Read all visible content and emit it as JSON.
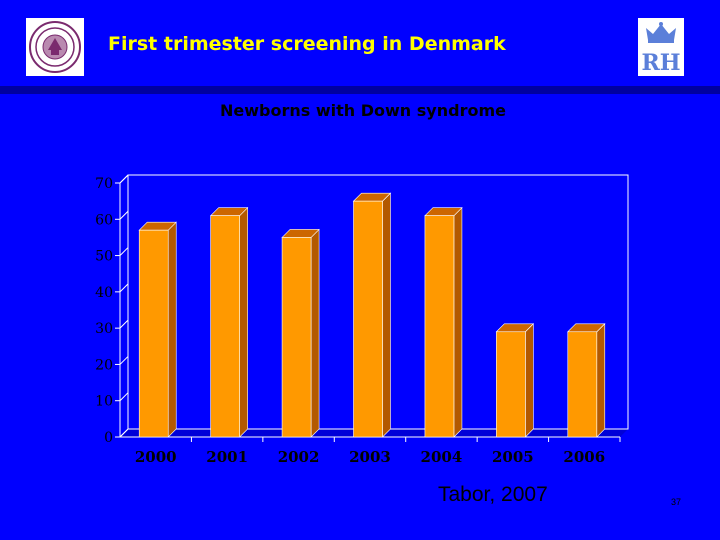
{
  "slide": {
    "title": "First trimester screening in Denmark",
    "credit": "Tabor, 2007",
    "slide_number": "37",
    "background_color": "#0000ff",
    "title_color": "#ffff00",
    "logo_left": "university-seal-logo",
    "logo_right": "crown-rh-logo"
  },
  "chart_data": {
    "type": "bar",
    "title": "Newborns with Down syndrome",
    "xlabel": "",
    "ylabel": "",
    "categories": [
      "2000",
      "2001",
      "2002",
      "2003",
      "2004",
      "2005",
      "2006"
    ],
    "values": [
      57,
      61,
      55,
      65,
      61,
      29,
      29
    ],
    "ylim": [
      0,
      70
    ],
    "yticks": [
      0,
      10,
      20,
      30,
      40,
      50,
      60,
      70
    ],
    "grid": false,
    "legend": "none",
    "bar_color": "#ff9900",
    "bar_top_color": "#cc6600",
    "bar_side_color": "#b35900",
    "style": "3d"
  }
}
